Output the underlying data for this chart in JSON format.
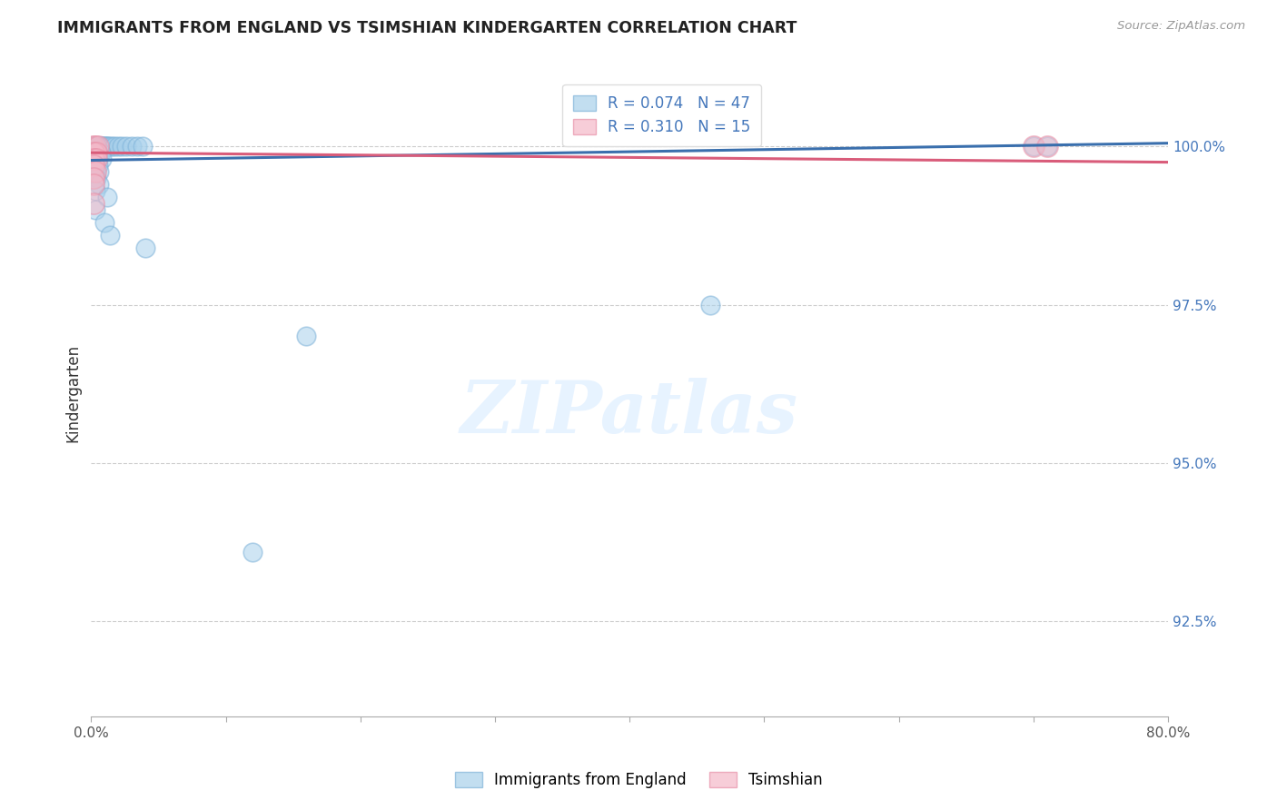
{
  "title": "IMMIGRANTS FROM ENGLAND VS TSIMSHIAN KINDERGARTEN CORRELATION CHART",
  "source": "Source: ZipAtlas.com",
  "ylabel": "Kindergarten",
  "ytick_labels": [
    "100.0%",
    "97.5%",
    "95.0%",
    "92.5%"
  ],
  "ytick_values": [
    1.0,
    0.975,
    0.95,
    0.925
  ],
  "xlim": [
    0.0,
    0.8
  ],
  "ylim": [
    0.91,
    1.012
  ],
  "watermark": "ZIPatlas",
  "legend_blue_label": "Immigrants from England",
  "legend_pink_label": "Tsimshian",
  "R_blue": 0.074,
  "N_blue": 47,
  "R_pink": 0.31,
  "N_pink": 15,
  "blue_color": "#a8d0eb",
  "pink_color": "#f4b8c8",
  "blue_edge_color": "#7fb3d9",
  "pink_edge_color": "#e891a8",
  "blue_line_color": "#3a6fad",
  "pink_line_color": "#d95c7a",
  "blue_scatter": [
    [
      0.001,
      1.0
    ],
    [
      0.002,
      1.0
    ],
    [
      0.003,
      1.0
    ],
    [
      0.004,
      1.0
    ],
    [
      0.005,
      1.0
    ],
    [
      0.006,
      1.0
    ],
    [
      0.007,
      1.0
    ],
    [
      0.008,
      1.0
    ],
    [
      0.009,
      1.0
    ],
    [
      0.01,
      1.0
    ],
    [
      0.011,
      1.0
    ],
    [
      0.012,
      1.0
    ],
    [
      0.013,
      1.0
    ],
    [
      0.015,
      1.0
    ],
    [
      0.017,
      1.0
    ],
    [
      0.02,
      1.0
    ],
    [
      0.023,
      1.0
    ],
    [
      0.026,
      1.0
    ],
    [
      0.03,
      1.0
    ],
    [
      0.034,
      1.0
    ],
    [
      0.038,
      1.0
    ],
    [
      0.003,
      0.999
    ],
    [
      0.005,
      0.999
    ],
    [
      0.007,
      0.999
    ],
    [
      0.003,
      0.998
    ],
    [
      0.005,
      0.998
    ],
    [
      0.008,
      0.998
    ],
    [
      0.003,
      0.997
    ],
    [
      0.005,
      0.997
    ],
    [
      0.003,
      0.996
    ],
    [
      0.006,
      0.996
    ],
    [
      0.004,
      0.995
    ],
    [
      0.006,
      0.994
    ],
    [
      0.003,
      0.993
    ],
    [
      0.012,
      0.992
    ],
    [
      0.003,
      0.99
    ],
    [
      0.01,
      0.988
    ],
    [
      0.014,
      0.986
    ],
    [
      0.04,
      0.984
    ],
    [
      0.16,
      0.97
    ],
    [
      0.12,
      0.936
    ],
    [
      0.46,
      0.975
    ],
    [
      0.7,
      1.0
    ],
    [
      0.71,
      1.0
    ]
  ],
  "pink_scatter": [
    [
      0.001,
      1.0
    ],
    [
      0.003,
      1.0
    ],
    [
      0.005,
      1.0
    ],
    [
      0.002,
      0.999
    ],
    [
      0.004,
      0.999
    ],
    [
      0.002,
      0.998
    ],
    [
      0.004,
      0.998
    ],
    [
      0.002,
      0.997
    ],
    [
      0.003,
      0.996
    ],
    [
      0.002,
      0.995
    ],
    [
      0.002,
      0.994
    ],
    [
      0.002,
      0.991
    ],
    [
      0.7,
      1.0
    ],
    [
      0.71,
      1.0
    ]
  ],
  "blue_marker_size": 220,
  "pink_marker_size": 280,
  "blue_line_x0": 0.0,
  "blue_line_y0": 0.9978,
  "blue_line_x1": 0.8,
  "blue_line_y1": 1.0005,
  "pink_line_x0": 0.0,
  "pink_line_y0": 0.999,
  "pink_line_x1": 0.8,
  "pink_line_y1": 0.9975
}
